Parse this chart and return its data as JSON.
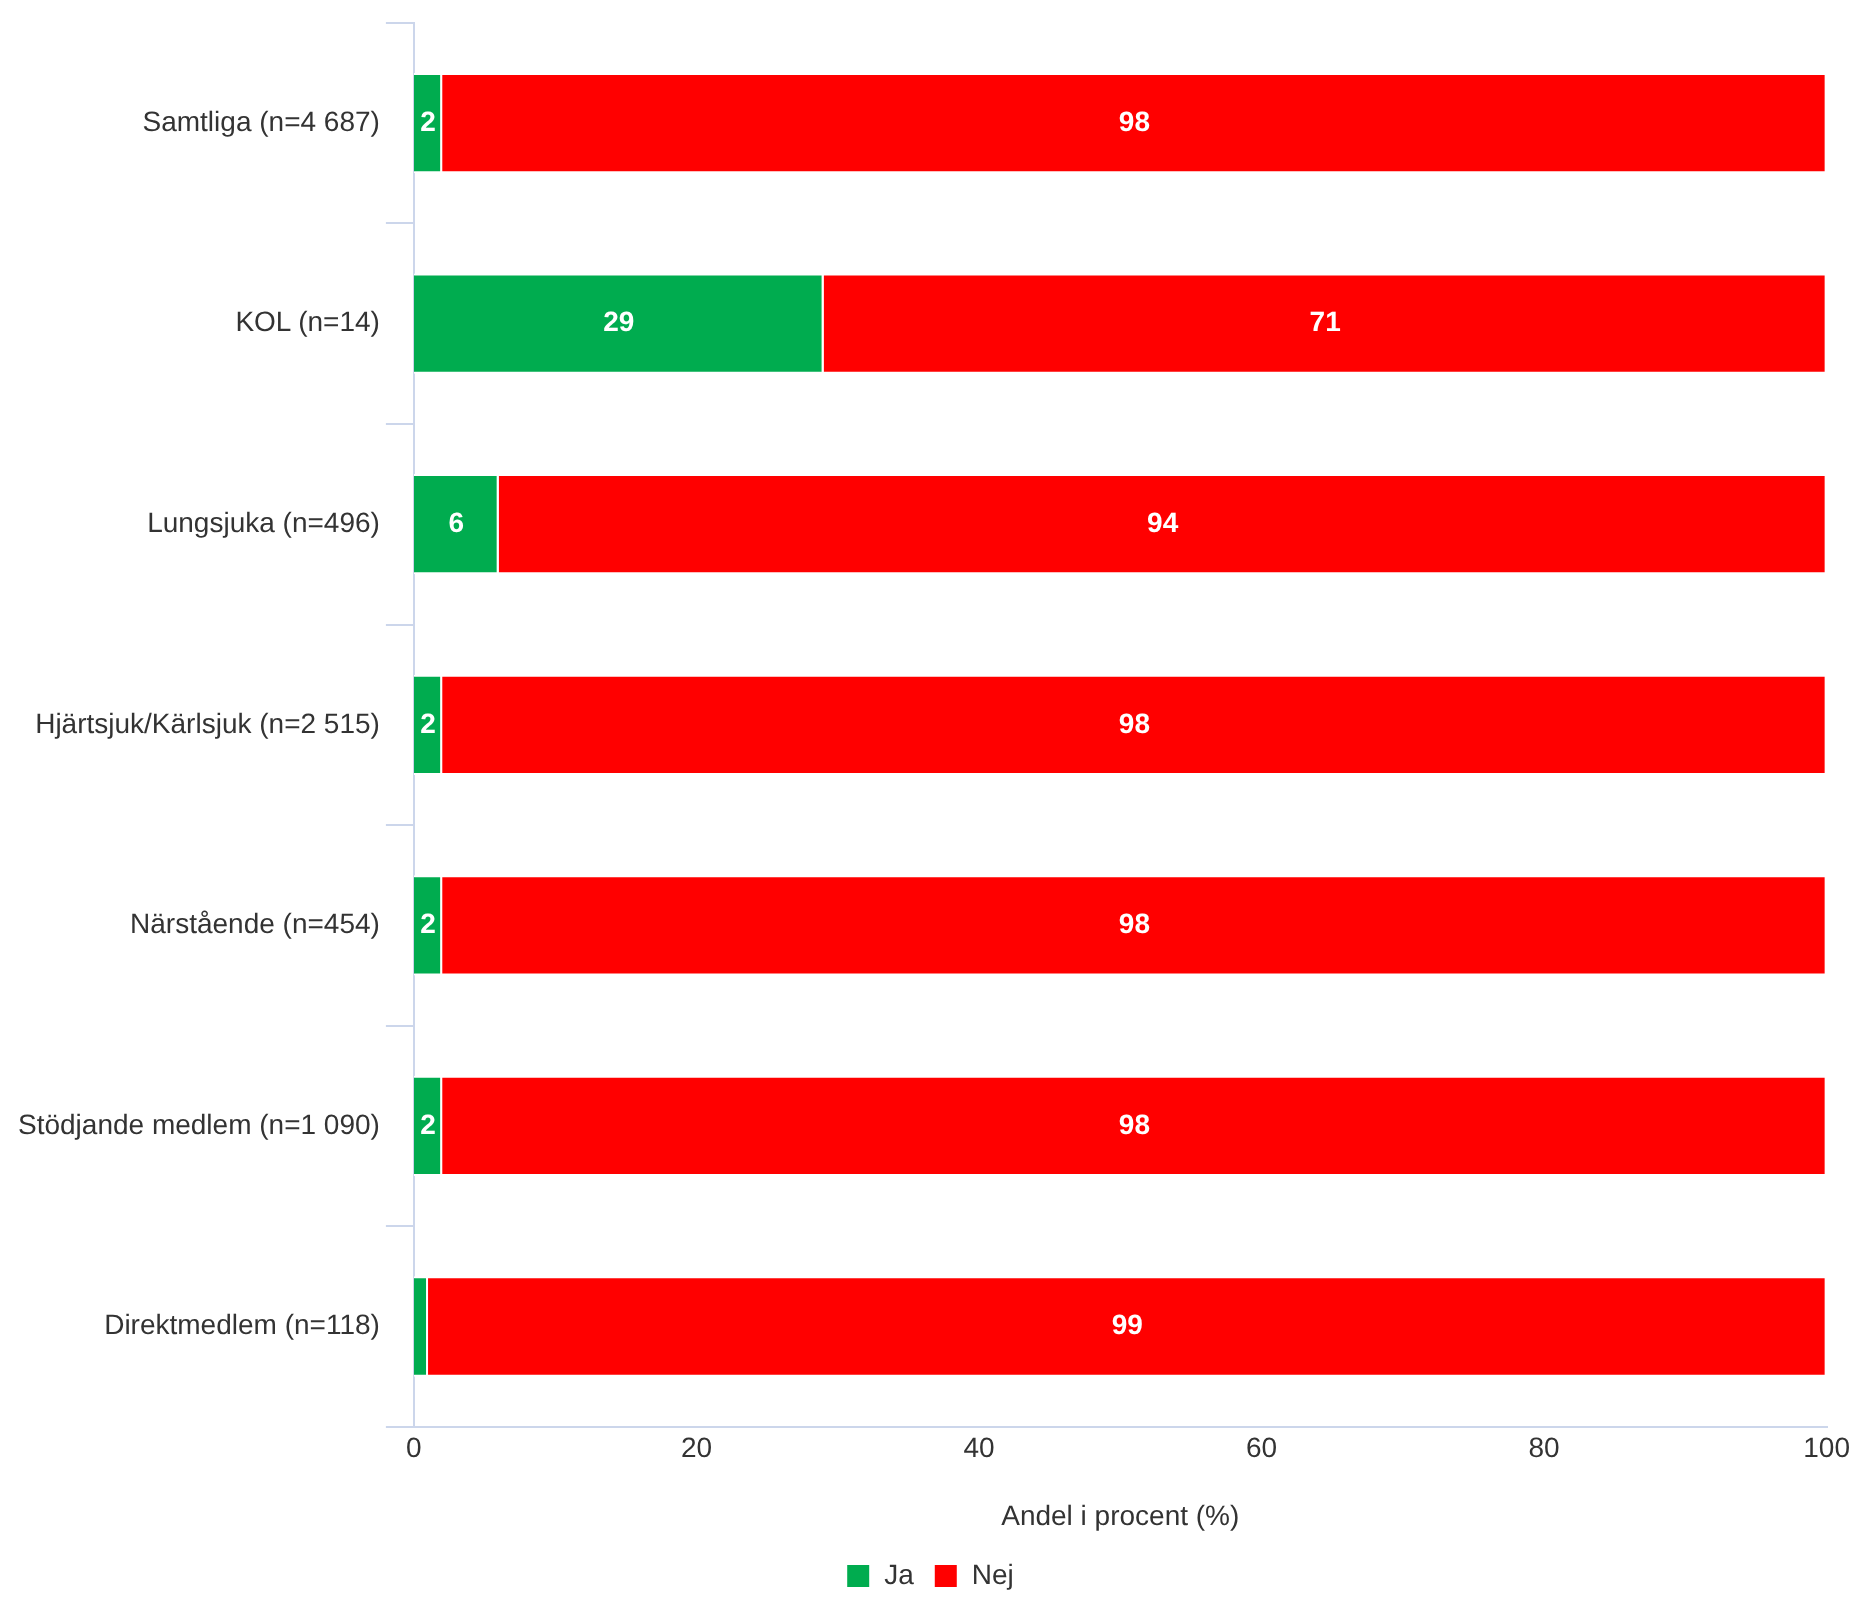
{
  "chart_data": {
    "type": "bar",
    "orientation": "horizontal",
    "stacked": true,
    "categories": [
      "Samtliga (n=4 687)",
      "KOL (n=14)",
      "Lungsjuka (n=496)",
      "Hjärtsjuk/Kärlsjuk (n=2 515)",
      "Närstående (n=454)",
      "Stödjande medlem (n=1 090)",
      "Direktmedlem (n=118)"
    ],
    "series": [
      {
        "name": "Ja",
        "color": "#00ac4f",
        "values": [
          2,
          29,
          6,
          2,
          2,
          2,
          1
        ],
        "value_labels": [
          "2",
          "29",
          "6",
          "2",
          "2",
          "2",
          null
        ]
      },
      {
        "name": "Nej",
        "color": "#ff0000",
        "values": [
          98,
          71,
          94,
          98,
          98,
          98,
          99
        ],
        "value_labels": [
          "98",
          "71",
          "94",
          "98",
          "98",
          "98",
          "99"
        ]
      }
    ],
    "xlabel": "Andel i procent (%)",
    "xlim": [
      0,
      100
    ],
    "xticks": [
      0,
      20,
      40,
      60,
      80,
      100
    ],
    "grid": false,
    "legend": "bottom"
  }
}
